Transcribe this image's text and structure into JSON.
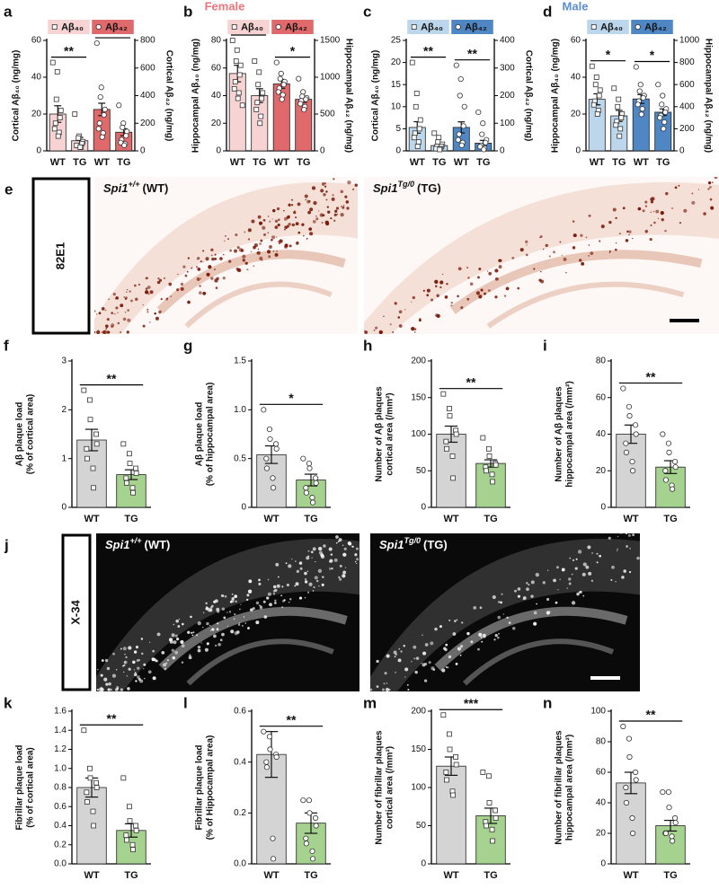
{
  "headers": [
    "Female",
    "Male"
  ],
  "image_panels": [
    {
      "panel": "e",
      "stain": "82E1",
      "captions": [
        {
          "gene": "Spi1",
          "genotype": "+/+",
          "group": "(WT)"
        },
        {
          "gene": "Spi1",
          "genotype": "Tg/0",
          "group": "(TG)"
        }
      ]
    },
    {
      "panel": "j",
      "stain": "X-34",
      "captions": [
        {
          "gene": "Spi1",
          "genotype": "+/+",
          "group": "(WT)"
        },
        {
          "gene": "Spi1",
          "genotype": "Tg/0",
          "group": "(TG)"
        }
      ]
    }
  ],
  "chart_data": [
    {
      "type": "bar",
      "panel": "a",
      "ylabel": "Cortical Aβ₄₀ (ng/mg)",
      "y2label": "Cortical Aβ₄₂ (ng/mg)",
      "ylim": [
        0,
        60
      ],
      "yticks": [
        0,
        20,
        40,
        60
      ],
      "y2lim": [
        0,
        800
      ],
      "y2ticks": [
        0,
        200,
        400,
        600,
        800
      ],
      "series": [
        {
          "name": "Aβ₄₀",
          "color": "#f7d3d3",
          "marker": "square",
          "axis": "y",
          "categories": [
            "WT",
            "TG"
          ],
          "values": [
            20,
            5.5
          ],
          "errors": [
            4.5,
            1.8
          ],
          "significance": "**",
          "points": [
            [
              48,
              43,
              28,
              22,
              18,
              15,
              12,
              10,
              8
            ],
            [
              20,
              8,
              7,
              5,
              4,
              3,
              3,
              2,
              2
            ]
          ]
        },
        {
          "name": "Aβ₄₂",
          "color": "#e0696b",
          "marker": "circle",
          "axis": "y2",
          "categories": [
            "WT",
            "TG"
          ],
          "values": [
            300,
            135
          ],
          "errors": [
            45,
            25
          ],
          "significance": "**",
          "points": [
            [
              780,
              460,
              390,
              300,
              260,
              200,
              160,
              130,
              100
            ],
            [
              330,
              200,
              170,
              140,
              110,
              80,
              60,
              50,
              40
            ]
          ]
        }
      ]
    },
    {
      "type": "bar",
      "panel": "b",
      "ylabel": "Hippocampal Aβ₄₀ (ng/mg)",
      "y2label": "Hippocampal Aβ₄₂ (ng/mg)",
      "ylim": [
        0,
        80
      ],
      "yticks": [
        0,
        20,
        40,
        60,
        80
      ],
      "y2lim": [
        0,
        1500
      ],
      "y2ticks": [
        0,
        500,
        1000,
        1500
      ],
      "series": [
        {
          "name": "Aβ₄₀",
          "color": "#f7d3d3",
          "marker": "square",
          "axis": "y",
          "categories": [
            "WT",
            "TG"
          ],
          "values": [
            56,
            40
          ],
          "errors": [
            6,
            5
          ],
          "significance": "*",
          "points": [
            [
              80,
              73,
              65,
              62,
              55,
              50,
              45,
              42,
              38,
              33
            ],
            [
              65,
              57,
              48,
              42,
              38,
              35,
              30,
              25,
              20
            ]
          ]
        },
        {
          "name": "Aβ₄₂",
          "color": "#e0696b",
          "marker": "circle",
          "axis": "y2",
          "categories": [
            "WT",
            "TG"
          ],
          "values": [
            910,
            700
          ],
          "errors": [
            60,
            40
          ],
          "significance": "*",
          "points": [
            [
              1200,
              1050,
              980,
              940,
              900,
              850,
              800,
              760,
              700
            ],
            [
              980,
              800,
              740,
              720,
              700,
              680,
              640,
              600,
              560
            ]
          ]
        }
      ]
    },
    {
      "type": "bar",
      "panel": "c",
      "ylabel": "Cortical Aβ₄₀ (ng/mg)",
      "y2label": "Cortical Aβ₄₂ (ng/mg)",
      "ylim": [
        0,
        25
      ],
      "yticks": [
        0,
        5,
        10,
        15,
        20,
        25
      ],
      "y2lim": [
        0,
        400
      ],
      "y2ticks": [
        0,
        100,
        200,
        300,
        400
      ],
      "series": [
        {
          "name": "Aβ₄₀",
          "color": "#bcd6ec",
          "marker": "square",
          "axis": "y",
          "categories": [
            "WT",
            "TG"
          ],
          "values": [
            5.3,
            1.2
          ],
          "errors": [
            1.3,
            0.4
          ],
          "significance": "**",
          "points": [
            [
              20,
              13,
              10,
              7,
              5,
              4,
              3,
              2,
              1
            ],
            [
              4,
              3,
              2,
              1.5,
              1,
              1,
              0.5,
              0.5,
              0.3
            ]
          ]
        },
        {
          "name": "Aβ₄₂",
          "color": "#4f86c4",
          "marker": "circle",
          "axis": "y2",
          "categories": [
            "WT",
            "TG"
          ],
          "values": [
            85,
            28
          ],
          "errors": [
            20,
            10
          ],
          "significance": "**",
          "points": [
            [
              310,
              260,
              200,
              160,
              90,
              60,
              40,
              30,
              20
            ],
            [
              140,
              100,
              60,
              40,
              30,
              20,
              15,
              10,
              5
            ]
          ]
        }
      ]
    },
    {
      "type": "bar",
      "panel": "d",
      "ylabel": "Hippocampal Aβ₄₀ (ng/mg)",
      "y2label": "Hippocampal Aβ₄₂ (ng/mg)",
      "ylim": [
        0,
        60
      ],
      "yticks": [
        0,
        20,
        40,
        60
      ],
      "y2lim": [
        0,
        1000
      ],
      "y2ticks": [
        0,
        200,
        400,
        600,
        800,
        1000
      ],
      "series": [
        {
          "name": "Aβ₄₀",
          "color": "#bcd6ec",
          "marker": "square",
          "axis": "y",
          "categories": [
            "WT",
            "TG"
          ],
          "values": [
            28,
            19
          ],
          "errors": [
            3,
            3
          ],
          "significance": "*",
          "points": [
            [
              46,
              40,
              36,
              33,
              30,
              27,
              25,
              22,
              20
            ],
            [
              34,
              28,
              24,
              20,
              18,
              16,
              14,
              12,
              8
            ]
          ]
        },
        {
          "name": "Aβ₄₂",
          "color": "#4f86c4",
          "marker": "circle",
          "axis": "y2",
          "categories": [
            "WT",
            "TG"
          ],
          "values": [
            470,
            350
          ],
          "errors": [
            40,
            30
          ],
          "significance": "*",
          "points": [
            [
              760,
              600,
              540,
              500,
              480,
              450,
              420,
              380,
              330
            ],
            [
              600,
              500,
              420,
              380,
              350,
              320,
              300,
              260,
              200
            ]
          ]
        }
      ]
    },
    {
      "type": "bar",
      "panel": "f",
      "ylabel": [
        "Aβ plaque load",
        "(% of cortical area)"
      ],
      "ylim": [
        0,
        3
      ],
      "yticks": [
        0,
        1,
        2,
        3
      ],
      "series": [
        {
          "colors": [
            "#d4d4d4",
            "#a5d28f"
          ],
          "marker": "square",
          "categories": [
            "WT",
            "TG"
          ],
          "values": [
            1.38,
            0.67
          ],
          "errors": [
            0.22,
            0.1
          ],
          "significance": "**",
          "points": [
            [
              2.4,
              2.2,
              1.8,
              1.5,
              1.3,
              1.2,
              1.0,
              0.8,
              0.4
            ],
            [
              1.3,
              1.1,
              0.9,
              0.8,
              0.7,
              0.6,
              0.5,
              0.4,
              0.3
            ]
          ]
        }
      ]
    },
    {
      "type": "bar",
      "panel": "g",
      "ylabel": [
        "Aβ plaque load",
        "(% of hippocampal area)"
      ],
      "ylim": [
        0,
        1.5
      ],
      "yticks": [
        0,
        0.5,
        {
          "value": 1,
          "label": "1.0"
        },
        1.5
      ],
      "series": [
        {
          "colors": [
            "#d4d4d4",
            "#a5d28f"
          ],
          "marker": "circle",
          "categories": [
            "WT",
            "TG"
          ],
          "values": [
            0.54,
            0.28
          ],
          "errors": [
            0.09,
            0.06
          ],
          "significance": "*",
          "points": [
            [
              1.0,
              0.8,
              0.7,
              0.65,
              0.6,
              0.5,
              0.4,
              0.3,
              0.2
            ],
            [
              0.5,
              0.45,
              0.4,
              0.3,
              0.25,
              0.2,
              0.15,
              0.1,
              0.05
            ]
          ]
        }
      ]
    },
    {
      "type": "bar",
      "panel": "h",
      "ylabel": [
        "Number of Aβ plaques",
        "cortical area (/mm²)"
      ],
      "ylim": [
        0,
        200
      ],
      "yticks": [
        0,
        50,
        100,
        150,
        200
      ],
      "series": [
        {
          "colors": [
            "#d4d4d4",
            "#a5d28f"
          ],
          "marker": "square",
          "categories": [
            "WT",
            "TG"
          ],
          "values": [
            100,
            60
          ],
          "errors": [
            11,
            5
          ],
          "significance": "**",
          "points": [
            [
              155,
              135,
              125,
              105,
              100,
              90,
              80,
              70,
              40
            ],
            [
              95,
              80,
              70,
              60,
              58,
              55,
              50,
              45,
              35
            ]
          ]
        }
      ]
    },
    {
      "type": "bar",
      "panel": "i",
      "ylabel": [
        "Number of Aβ plaques",
        "hippocampal area (/mm²)"
      ],
      "ylim": [
        0,
        80
      ],
      "yticks": [
        0,
        20,
        40,
        60,
        80
      ],
      "series": [
        {
          "colors": [
            "#d4d4d4",
            "#a5d28f"
          ],
          "marker": "circle",
          "categories": [
            "WT",
            "TG"
          ],
          "values": [
            40,
            22
          ],
          "errors": [
            5,
            3.5
          ],
          "significance": "**",
          "points": [
            [
              65,
              55,
              50,
              45,
              40,
              35,
              30,
              25,
              20
            ],
            [
              40,
              35,
              30,
              25,
              22,
              20,
              15,
              12,
              10
            ]
          ]
        }
      ]
    },
    {
      "type": "bar",
      "panel": "k",
      "ylabel": [
        "Fibrillar plaque load",
        "(% of cortical area)"
      ],
      "ylim": [
        0,
        1.6
      ],
      "yticks": [
        {
          "value": 0,
          "label": "0.0"
        },
        0.2,
        0.4,
        0.6,
        0.8,
        {
          "value": 1,
          "label": "1.0"
        },
        1.2,
        1.4,
        1.6
      ],
      "series": [
        {
          "colors": [
            "#d4d4d4",
            "#a5d28f"
          ],
          "marker": "square",
          "categories": [
            "WT",
            "TG"
          ],
          "values": [
            0.8,
            0.35
          ],
          "errors": [
            0.1,
            0.07
          ],
          "significance": "**",
          "points": [
            [
              1.4,
              1.0,
              0.9,
              0.85,
              0.8,
              0.75,
              0.65,
              0.55,
              0.4
            ],
            [
              0.9,
              0.6,
              0.45,
              0.4,
              0.35,
              0.3,
              0.25,
              0.2,
              0.15
            ]
          ]
        }
      ]
    },
    {
      "type": "bar",
      "panel": "l",
      "ylabel": [
        "Fibrillar plaque load",
        "(% of Hippocampal area)"
      ],
      "ylim": [
        0,
        0.6
      ],
      "yticks": [
        {
          "value": 0,
          "label": "0.0"
        },
        0.2,
        0.4,
        0.6
      ],
      "series": [
        {
          "colors": [
            "#d4d4d4",
            "#a5d28f"
          ],
          "marker": "circle",
          "categories": [
            "WT",
            "TG"
          ],
          "values": [
            0.43,
            0.16
          ],
          "errors": [
            0.09,
            0.04
          ],
          "significance": "**",
          "points": [
            [
              0.52,
              0.5,
              0.45,
              0.43,
              0.42,
              0.4,
              0.38,
              0.1,
              0.02
            ],
            [
              0.25,
              0.25,
              0.2,
              0.18,
              0.15,
              0.1,
              0.08,
              0.05,
              0.02
            ]
          ]
        }
      ]
    },
    {
      "type": "bar",
      "panel": "m",
      "ylabel": [
        "Number of fibrillar plaques",
        "cortical area (/mm²)"
      ],
      "ylim": [
        0,
        200
      ],
      "yticks": [
        0,
        50,
        100,
        150,
        200
      ],
      "series": [
        {
          "colors": [
            "#d4d4d4",
            "#a5d28f"
          ],
          "marker": "square",
          "categories": [
            "WT",
            "TG"
          ],
          "values": [
            128,
            63
          ],
          "errors": [
            12,
            10
          ],
          "significance": "***",
          "points": [
            [
              195,
              170,
              150,
              140,
              130,
              120,
              110,
              95,
              90
            ],
            [
              120,
              115,
              80,
              70,
              60,
              55,
              50,
              45,
              30
            ]
          ]
        }
      ]
    },
    {
      "type": "bar",
      "panel": "n",
      "ylabel": [
        "Number of fibrillar plaques",
        "hippocampal area (/mm²)"
      ],
      "ylim": [
        0,
        100
      ],
      "yticks": [
        0,
        20,
        40,
        60,
        80,
        100
      ],
      "series": [
        {
          "colors": [
            "#d4d4d4",
            "#a5d28f"
          ],
          "marker": "circle",
          "categories": [
            "WT",
            "TG"
          ],
          "values": [
            53,
            25
          ],
          "errors": [
            7,
            3.5
          ],
          "significance": "**",
          "points": [
            [
              90,
              82,
              70,
              60,
              55,
              50,
              40,
              30,
              20
            ],
            [
              47,
              47,
              37,
              30,
              27,
              20,
              20,
              18,
              15
            ]
          ]
        }
      ]
    }
  ]
}
